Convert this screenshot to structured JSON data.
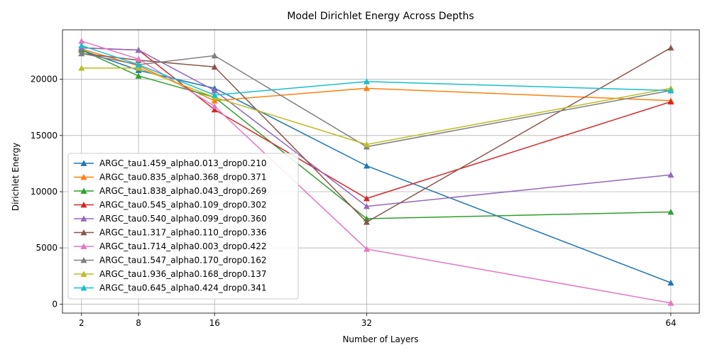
{
  "chart_data": {
    "type": "line",
    "title": "Model Dirichlet Energy Across Depths",
    "xlabel": "Number of Layers",
    "ylabel": "Dirichlet Energy",
    "x": [
      2,
      8,
      16,
      32,
      64
    ],
    "xticks": [
      "2",
      "8",
      "16",
      "32",
      "64"
    ],
    "xlim": [
      0,
      67
    ],
    "ylim": [
      -800,
      24400
    ],
    "yticks": [
      0,
      5000,
      10000,
      15000,
      20000
    ],
    "ytick_labels": [
      "0",
      "5000",
      "10000",
      "15000",
      "20000"
    ],
    "grid": true,
    "legend_position": "lower-left",
    "marker": "triangle-up",
    "series": [
      {
        "name": "ARGC_tau1.459_alpha0.013_drop0.210",
        "color": "#1f77b4",
        "values": [
          22600,
          20800,
          19200,
          12300,
          1900
        ]
      },
      {
        "name": "ARGC_tau0.835_alpha0.368_drop0.371",
        "color": "#ff7f0e",
        "values": [
          22700,
          21200,
          18100,
          19200,
          18100
        ]
      },
      {
        "name": "ARGC_tau1.838_alpha0.043_drop0.269",
        "color": "#2ca02c",
        "values": [
          22600,
          20300,
          18400,
          7600,
          8200
        ]
      },
      {
        "name": "ARGC_tau0.545_alpha0.109_drop0.302",
        "color": "#d62728",
        "values": [
          22800,
          22600,
          17300,
          9400,
          18000
        ]
      },
      {
        "name": "ARGC_tau0.540_alpha0.099_drop0.360",
        "color": "#9467bd",
        "values": [
          22800,
          22600,
          19000,
          8700,
          11500
        ]
      },
      {
        "name": "ARGC_tau1.317_alpha0.110_drop0.336",
        "color": "#8c564b",
        "values": [
          22300,
          21700,
          21100,
          7300,
          22800
        ]
      },
      {
        "name": "ARGC_tau1.714_alpha0.003_drop0.422",
        "color": "#e377c2",
        "values": [
          23400,
          21800,
          17600,
          4900,
          100
        ]
      },
      {
        "name": "ARGC_tau1.547_alpha0.170_drop0.162",
        "color": "#7f7f7f",
        "values": [
          22300,
          21300,
          22100,
          14000,
          19000
        ]
      },
      {
        "name": "ARGC_tau1.936_alpha0.168_drop0.137",
        "color": "#bcbd22",
        "values": [
          21000,
          21000,
          18400,
          14200,
          19200
        ]
      },
      {
        "name": "ARGC_tau0.645_alpha0.424_drop0.341",
        "color": "#17becf",
        "values": [
          23000,
          21300,
          18600,
          19800,
          19000
        ]
      }
    ]
  }
}
